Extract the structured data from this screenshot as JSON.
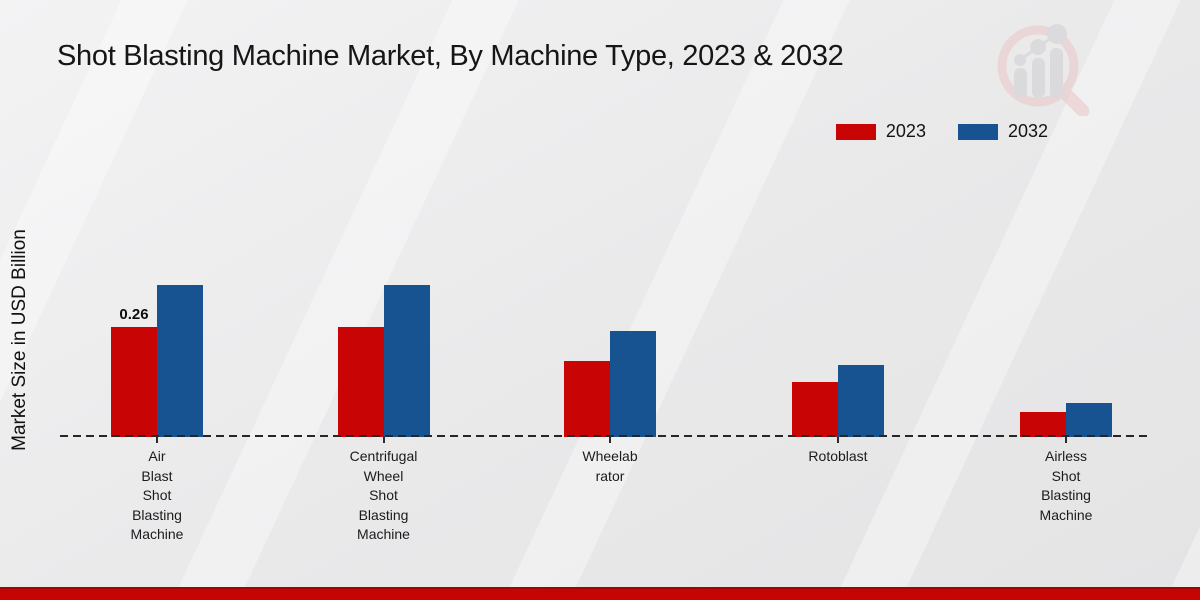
{
  "title": "Shot Blasting Machine Market, By Machine Type, 2023 & 2032",
  "y_axis_label": "Market Size in USD Billion",
  "legend": {
    "items": [
      {
        "label": "2023",
        "color": "#c90404"
      },
      {
        "label": "2032",
        "color": "#175390"
      }
    ]
  },
  "watermark": {
    "icon": "magnifier-growth-chart-logo"
  },
  "footer": {
    "band_color": "#c50404"
  },
  "background_color": "#e9e9ea",
  "chart_data": {
    "type": "bar",
    "title": "Shot Blasting Machine Market, By Machine Type, 2023 & 2032",
    "xlabel": "",
    "ylabel": "Market Size in USD Billion",
    "ylim": [
      0,
      0.4
    ],
    "grid": false,
    "axis_style": "dashed baseline, no y ticks",
    "legend_position": "top-right",
    "categories": [
      "Air Blast Shot Blasting Machine",
      "Centrifugal Wheel Shot Blasting Machine",
      "Wheelabrator",
      "Rotoblast",
      "Airless Shot Blasting Machine"
    ],
    "category_label_lines": [
      [
        "Air",
        "Blast",
        "Shot",
        "Blasting",
        "Machine"
      ],
      [
        "Centrifugal",
        "Wheel",
        "Shot",
        "Blasting",
        "Machine"
      ],
      [
        "Wheelab",
        "rator"
      ],
      [
        "Rotoblast"
      ],
      [
        "Airless",
        "Shot",
        "Blasting",
        "Machine"
      ]
    ],
    "series": [
      {
        "name": "2023",
        "color": "#c90404",
        "values": [
          0.26,
          0.26,
          0.18,
          0.13,
          0.06
        ]
      },
      {
        "name": "2032",
        "color": "#175390",
        "values": [
          0.36,
          0.36,
          0.25,
          0.17,
          0.08
        ]
      }
    ],
    "data_labels": [
      {
        "series": "2023",
        "category_index": 0,
        "text": "0.26"
      }
    ]
  }
}
